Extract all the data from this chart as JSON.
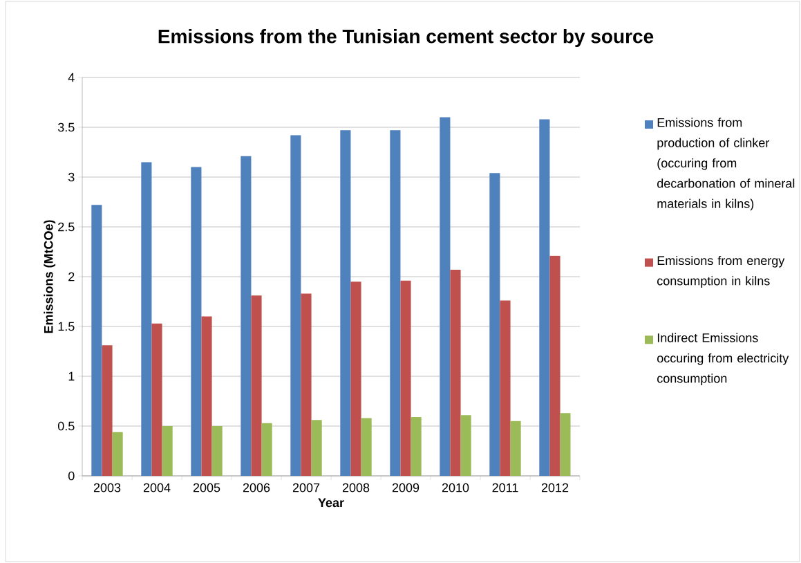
{
  "chart_data": {
    "type": "bar",
    "title": "Emissions from the Tunisian cement sector by source",
    "xlabel": "Year",
    "ylabel": "Emissions (MtCOe)",
    "categories": [
      "2003",
      "2004",
      "2005",
      "2006",
      "2007",
      "2008",
      "2009",
      "2010",
      "2011",
      "2012"
    ],
    "series": [
      {
        "name": "Emissions from production of clinker (occuring from decarbonation of mineral materials in kilns)",
        "color": "#4f81bd",
        "values": [
          2.72,
          3.15,
          3.1,
          3.21,
          3.42,
          3.47,
          3.47,
          3.6,
          3.04,
          3.58
        ]
      },
      {
        "name": "Emissions from energy consumption in kilns",
        "color": "#c0504d",
        "values": [
          1.31,
          1.53,
          1.6,
          1.81,
          1.83,
          1.95,
          1.96,
          2.07,
          1.76,
          2.21
        ]
      },
      {
        "name": "Indirect Emissions occuring from electricity consumption",
        "color": "#9bbb59",
        "values": [
          0.44,
          0.5,
          0.5,
          0.53,
          0.56,
          0.58,
          0.59,
          0.61,
          0.55,
          0.63
        ]
      }
    ],
    "ylim": [
      0,
      4
    ],
    "yticks": [
      0,
      0.5,
      1,
      1.5,
      2,
      2.5,
      3,
      3.5,
      4
    ],
    "grid": "y",
    "legend": "right"
  }
}
